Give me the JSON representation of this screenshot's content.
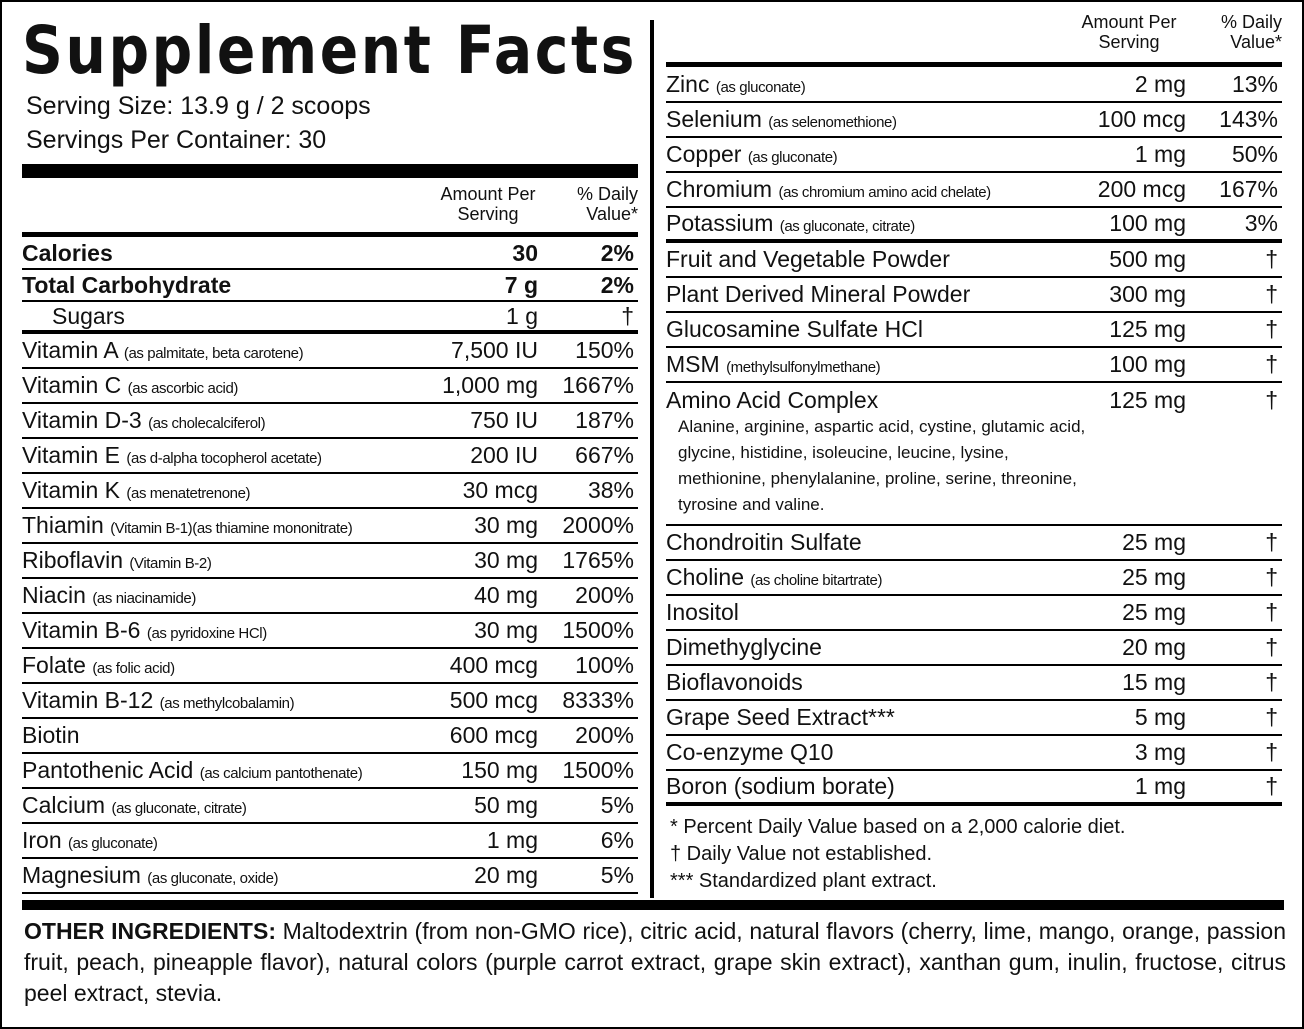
{
  "title": "Supplement Facts",
  "serving_size": "Serving Size: 13.9 g / 2 scoops",
  "servings_per_container": "Servings Per Container: 30",
  "left": {
    "header": {
      "amount": "Amount Per Serving",
      "daily_value": "% Daily Value*"
    },
    "rows": [
      {
        "name": "Calories",
        "amount": "30",
        "daily_value": "2%"
      },
      {
        "name": "Total Carbohydrate",
        "amount": "7 g",
        "daily_value": "2%"
      },
      {
        "name": "Sugars",
        "amount": "1 g",
        "daily_value": "†"
      },
      {
        "name": "Vitamin A",
        "note": "(as palmitate, beta carotene)",
        "amount": "7,500 IU",
        "daily_value": "150%"
      },
      {
        "name": "Vitamin C",
        "note": "(as ascorbic acid)",
        "amount": "1,000 mg",
        "daily_value": "1667%"
      },
      {
        "name": "Vitamin D-3",
        "note": "(as cholecalciferol)",
        "amount": "750 IU",
        "daily_value": "187%"
      },
      {
        "name": "Vitamin E",
        "note": "(as d-alpha tocopherol acetate)",
        "amount": "200 IU",
        "daily_value": "667%"
      },
      {
        "name": "Vitamin K",
        "note": "(as menatetrenone)",
        "amount": "30 mcg",
        "daily_value": "38%"
      },
      {
        "name": "Thiamin",
        "note": "(Vitamin B-1)(as thiamine mononitrate)",
        "amount": "30 mg",
        "daily_value": "2000%"
      },
      {
        "name": "Riboflavin",
        "note": "(Vitamin B-2)",
        "amount": "30 mg",
        "daily_value": "1765%"
      },
      {
        "name": "Niacin",
        "note": "(as niacinamide)",
        "amount": "40 mg",
        "daily_value": "200%"
      },
      {
        "name": "Vitamin B-6",
        "note": "(as pyridoxine HCl)",
        "amount": "30 mg",
        "daily_value": "1500%"
      },
      {
        "name": "Folate",
        "note": "(as folic acid)",
        "amount": "400 mcg",
        "daily_value": "100%"
      },
      {
        "name": "Vitamin B-12",
        "note": "(as methylcobalamin)",
        "amount": "500 mcg",
        "daily_value": "8333%"
      },
      {
        "name": "Biotin",
        "amount": "600 mcg",
        "daily_value": "200%"
      },
      {
        "name": "Pantothenic Acid",
        "note": "(as calcium pantothenate)",
        "amount": "150 mg",
        "daily_value": "1500%"
      },
      {
        "name": "Calcium",
        "note": "(as gluconate, citrate)",
        "amount": "50 mg",
        "daily_value": "5%"
      },
      {
        "name": "Iron",
        "note": "(as gluconate)",
        "amount": "1 mg",
        "daily_value": "6%"
      },
      {
        "name": "Magnesium",
        "note": "(as gluconate, oxide)",
        "amount": "20 mg",
        "daily_value": "5%"
      }
    ]
  },
  "right": {
    "header": {
      "amount": "Amount Per Serving",
      "daily_value": "% Daily Value*"
    },
    "rows": [
      {
        "name": "Zinc",
        "note": "(as gluconate)",
        "amount": "2 mg",
        "daily_value": "13%"
      },
      {
        "name": "Selenium",
        "note": "(as selenomethione)",
        "amount": "100 mcg",
        "daily_value": "143%"
      },
      {
        "name": "Copper",
        "note": "(as gluconate)",
        "amount": "1 mg",
        "daily_value": "50%"
      },
      {
        "name": "Chromium",
        "note": "(as chromium amino acid chelate)",
        "amount": "200 mcg",
        "daily_value": "167%"
      },
      {
        "name": "Potassium",
        "note": "(as gluconate, citrate)",
        "amount": "100 mg",
        "daily_value": "3%"
      },
      {
        "name": "Fruit and Vegetable Powder",
        "amount": "500 mg",
        "daily_value": "†"
      },
      {
        "name": "Plant Derived Mineral Powder",
        "amount": "300 mg",
        "daily_value": "†"
      },
      {
        "name": "Glucosamine Sulfate HCl",
        "amount": "125 mg",
        "daily_value": "†"
      },
      {
        "name": "MSM",
        "note": "(methylsulfonylmethane)",
        "amount": "100 mg",
        "daily_value": "†"
      },
      {
        "name": "Amino Acid Complex",
        "amount": "125 mg",
        "daily_value": "†",
        "description": "Alanine, arginine, aspartic acid, cystine, glutamic acid, glycine, histidine, isoleucine, leucine, lysine, methionine, phenylalanine, proline, serine, threonine, tyrosine and valine."
      },
      {
        "name": "Chondroitin Sulfate",
        "amount": "25 mg",
        "daily_value": "†"
      },
      {
        "name": "Choline",
        "note": "(as choline bitartrate)",
        "amount": "25 mg",
        "daily_value": "†"
      },
      {
        "name": "Inositol",
        "amount": "25 mg",
        "daily_value": "†"
      },
      {
        "name": "Dimethyglycine",
        "amount": "20 mg",
        "daily_value": "†"
      },
      {
        "name": "Bioflavonoids",
        "amount": "15 mg",
        "daily_value": "†"
      },
      {
        "name": "Grape Seed Extract***",
        "amount": "5 mg",
        "daily_value": "†"
      },
      {
        "name": "Co-enzyme Q10",
        "amount": "3 mg",
        "daily_value": "†"
      },
      {
        "name": "Boron (sodium borate)",
        "amount": "1 mg",
        "daily_value": "†"
      }
    ]
  },
  "footnotes": [
    "* Percent Daily Value based on a 2,000 calorie diet.",
    "† Daily Value not established.",
    "*** Standardized plant extract."
  ],
  "other_ingredients": {
    "label": "OTHER INGREDIENTS:",
    "text": "Maltodextrin (from non-GMO rice), citric acid, natural flavors (cherry, lime, mango, orange, passion fruit, peach, pineapple flavor), natural colors (purple carrot extract, grape skin extract), xanthan gum, inulin, fructose, citrus peel extract, stevia."
  }
}
